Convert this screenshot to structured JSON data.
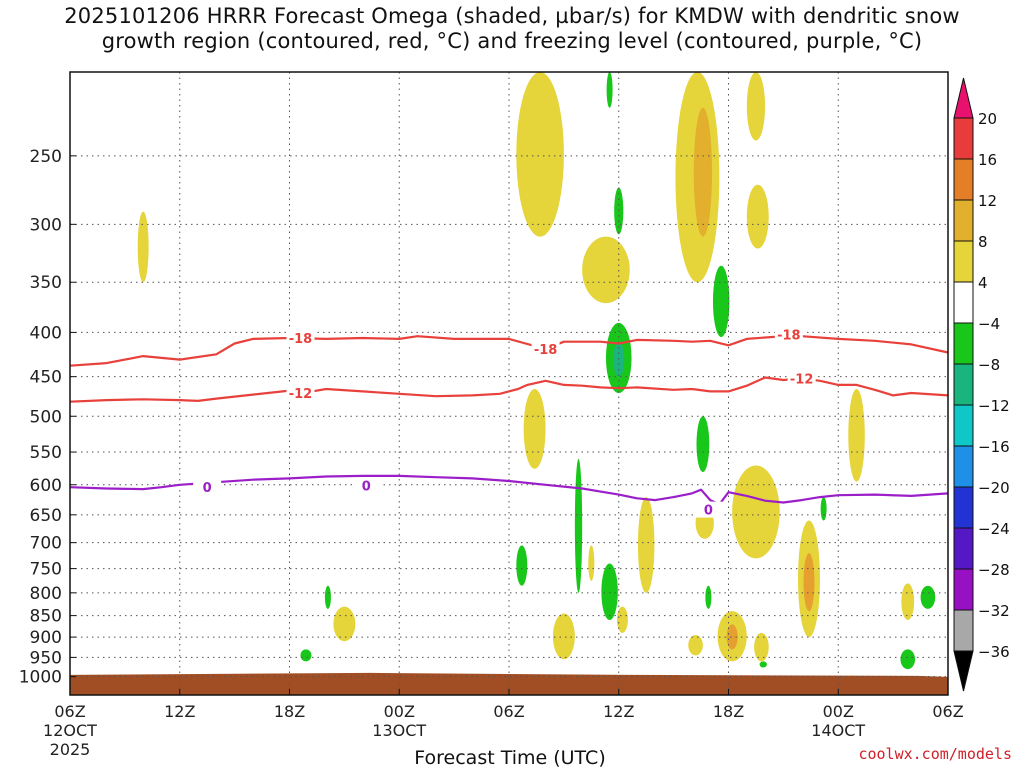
{
  "title": {
    "line1": "2025101206 HRRR Forecast Omega (shaded, µbar/s) for KMDW with dendritic snow",
    "line2": "growth region (contoured, red, °C) and freezing level (contoured, purple, °C)"
  },
  "credit": "coolwx.com/models",
  "chart_data": {
    "type": "heatmap",
    "xlabel": "Forecast Time (UTC)",
    "xlim": [
      0,
      48
    ],
    "x_unit": "hours from 2025-10-12 06Z",
    "x_ticks": [
      {
        "hour": 0,
        "label": "06Z",
        "sub1": "12OCT",
        "sub2": "2025"
      },
      {
        "hour": 6,
        "label": "12Z",
        "sub1": "",
        "sub2": ""
      },
      {
        "hour": 12,
        "label": "18Z",
        "sub1": "",
        "sub2": ""
      },
      {
        "hour": 18,
        "label": "00Z",
        "sub1": "13OCT",
        "sub2": ""
      },
      {
        "hour": 24,
        "label": "06Z",
        "sub1": "",
        "sub2": ""
      },
      {
        "hour": 30,
        "label": "12Z",
        "sub1": "",
        "sub2": ""
      },
      {
        "hour": 36,
        "label": "18Z",
        "sub1": "",
        "sub2": ""
      },
      {
        "hour": 42,
        "label": "00Z",
        "sub1": "14OCT",
        "sub2": ""
      },
      {
        "hour": 48,
        "label": "06Z",
        "sub1": "",
        "sub2": ""
      }
    ],
    "ylabel": "",
    "y_unit": "hPa",
    "y_scale": "log",
    "ylim": [
      1050,
      200
    ],
    "y_ticks": [
      250,
      300,
      350,
      400,
      450,
      500,
      550,
      600,
      650,
      700,
      750,
      800,
      850,
      900,
      950,
      1000
    ],
    "grid": true,
    "colorbar": {
      "levels": [
        20,
        16,
        12,
        8,
        4,
        -4,
        -8,
        -12,
        -16,
        -20,
        -24,
        -28,
        -32,
        -36
      ],
      "colors": [
        "#e8116e",
        "#e83c3c",
        "#e57f27",
        "#e3b02d",
        "#e5d43a",
        "#ffffff",
        "#19c71b",
        "#1ab47f",
        "#10c7c7",
        "#1e90e8",
        "#2233d4",
        "#5418c4",
        "#9710c4",
        "#a8a8a8",
        "#000000"
      ]
    },
    "ground": {
      "color": "#a24e24",
      "top_hpa": 990
    },
    "omega_regions": [
      {
        "t": 25.7,
        "p": 225,
        "dt": 1.3,
        "dp": 85,
        "level": 4
      },
      {
        "t": 29.5,
        "p": 210,
        "dt": 0.15,
        "dp": 10,
        "level": -4
      },
      {
        "t": 30.0,
        "p": 290,
        "dt": 0.25,
        "dp": 18,
        "level": -4
      },
      {
        "t": 29.3,
        "p": 340,
        "dt": 1.3,
        "dp": 30,
        "level": 4
      },
      {
        "t": 34.3,
        "p": 265,
        "dt": 1.2,
        "dp": 85,
        "level": 4
      },
      {
        "t": 34.6,
        "p": 265,
        "dt": 0.5,
        "dp": 45,
        "level": 8
      },
      {
        "t": 37.5,
        "p": 220,
        "dt": 0.5,
        "dp": 20,
        "level": 4
      },
      {
        "t": 37.6,
        "p": 295,
        "dt": 0.6,
        "dp": 25,
        "level": 4
      },
      {
        "t": 35.6,
        "p": 370,
        "dt": 0.45,
        "dp": 35,
        "level": -4
      },
      {
        "t": 30.0,
        "p": 430,
        "dt": 0.7,
        "dp": 40,
        "level": -4
      },
      {
        "t": 30.0,
        "p": 430,
        "dt": 0.3,
        "dp": 20,
        "level": -8
      },
      {
        "t": 4.0,
        "p": 320,
        "dt": 0.3,
        "dp": 30,
        "level": 4
      },
      {
        "t": 25.4,
        "p": 520,
        "dt": 0.6,
        "dp": 55,
        "level": 4
      },
      {
        "t": 34.6,
        "p": 540,
        "dt": 0.35,
        "dp": 40,
        "level": -4
      },
      {
        "t": 43.0,
        "p": 530,
        "dt": 0.45,
        "dp": 65,
        "level": 4
      },
      {
        "t": 37.5,
        "p": 650,
        "dt": 1.3,
        "dp": 80,
        "level": 4
      },
      {
        "t": 34.7,
        "p": 665,
        "dt": 0.5,
        "dp": 28,
        "level": 4
      },
      {
        "t": 31.5,
        "p": 710,
        "dt": 0.45,
        "dp": 90,
        "level": 4
      },
      {
        "t": 27.8,
        "p": 680,
        "dt": 0.2,
        "dp": 120,
        "level": -4
      },
      {
        "t": 28.5,
        "p": 740,
        "dt": 0.15,
        "dp": 35,
        "level": 4
      },
      {
        "t": 24.7,
        "p": 745,
        "dt": 0.3,
        "dp": 40,
        "level": -4
      },
      {
        "t": 29.5,
        "p": 800,
        "dt": 0.45,
        "dp": 60,
        "level": -4
      },
      {
        "t": 30.2,
        "p": 860,
        "dt": 0.3,
        "dp": 30,
        "level": 4
      },
      {
        "t": 27.0,
        "p": 900,
        "dt": 0.6,
        "dp": 55,
        "level": 4
      },
      {
        "t": 40.4,
        "p": 780,
        "dt": 0.6,
        "dp": 120,
        "level": 4
      },
      {
        "t": 40.4,
        "p": 780,
        "dt": 0.3,
        "dp": 60,
        "level": 12
      },
      {
        "t": 41.2,
        "p": 640,
        "dt": 0.15,
        "dp": 20,
        "level": -4
      },
      {
        "t": 36.2,
        "p": 900,
        "dt": 0.8,
        "dp": 60,
        "level": 4
      },
      {
        "t": 36.2,
        "p": 900,
        "dt": 0.3,
        "dp": 30,
        "level": 12
      },
      {
        "t": 34.2,
        "p": 920,
        "dt": 0.4,
        "dp": 25,
        "level": 4
      },
      {
        "t": 37.8,
        "p": 925,
        "dt": 0.4,
        "dp": 35,
        "level": 4
      },
      {
        "t": 34.9,
        "p": 810,
        "dt": 0.15,
        "dp": 25,
        "level": -4
      },
      {
        "t": 37.9,
        "p": 968,
        "dt": 0.2,
        "dp": 8,
        "level": -4
      },
      {
        "t": 14.1,
        "p": 810,
        "dt": 0.12,
        "dp": 25,
        "level": -4
      },
      {
        "t": 15.0,
        "p": 870,
        "dt": 0.6,
        "dp": 40,
        "level": 4
      },
      {
        "t": 12.9,
        "p": 945,
        "dt": 0.3,
        "dp": 15,
        "level": -4
      },
      {
        "t": 45.8,
        "p": 820,
        "dt": 0.35,
        "dp": 40,
        "level": 4
      },
      {
        "t": 46.9,
        "p": 810,
        "dt": 0.4,
        "dp": 25,
        "level": -4
      },
      {
        "t": 45.8,
        "p": 955,
        "dt": 0.4,
        "dp": 25,
        "level": -4
      }
    ],
    "isotherms_red": [
      {
        "label": "-18",
        "label_points": [
          [
            12.6,
            406
          ],
          [
            26.0,
            418
          ],
          [
            39.3,
            402
          ]
        ],
        "points": [
          [
            0,
            437
          ],
          [
            2,
            434
          ],
          [
            4,
            426
          ],
          [
            6,
            430
          ],
          [
            8,
            424
          ],
          [
            9,
            412
          ],
          [
            10,
            407
          ],
          [
            12,
            406
          ],
          [
            14,
            407
          ],
          [
            16,
            406
          ],
          [
            18,
            407
          ],
          [
            19,
            404
          ],
          [
            21,
            407
          ],
          [
            24,
            407
          ],
          [
            26,
            418
          ],
          [
            27,
            410
          ],
          [
            29,
            410
          ],
          [
            30,
            412
          ],
          [
            31,
            408
          ],
          [
            33,
            409
          ],
          [
            34,
            410
          ],
          [
            35,
            409
          ],
          [
            36,
            414
          ],
          [
            37,
            407
          ],
          [
            39,
            404
          ],
          [
            40,
            404
          ],
          [
            42,
            407
          ],
          [
            44,
            409
          ],
          [
            46,
            413
          ],
          [
            48,
            422
          ]
        ]
      },
      {
        "label": "-12",
        "label_points": [
          [
            12.6,
            470
          ],
          [
            40.0,
            452
          ]
        ],
        "points": [
          [
            0,
            481
          ],
          [
            2,
            479
          ],
          [
            4,
            478
          ],
          [
            6,
            479
          ],
          [
            7,
            480
          ],
          [
            8,
            477
          ],
          [
            10,
            472
          ],
          [
            12,
            467
          ],
          [
            13,
            469
          ],
          [
            14,
            465
          ],
          [
            16,
            468
          ],
          [
            18,
            471
          ],
          [
            20,
            474
          ],
          [
            22,
            473
          ],
          [
            23.5,
            471
          ],
          [
            24.5,
            465
          ],
          [
            25,
            460
          ],
          [
            26,
            455
          ],
          [
            27,
            460
          ],
          [
            28,
            461
          ],
          [
            29,
            463
          ],
          [
            30,
            464
          ],
          [
            31,
            463
          ],
          [
            33,
            466
          ],
          [
            34,
            465
          ],
          [
            35,
            468
          ],
          [
            36,
            468
          ],
          [
            37,
            461
          ],
          [
            38,
            451
          ],
          [
            39,
            454
          ],
          [
            40,
            452
          ],
          [
            41,
            455
          ],
          [
            42,
            460
          ],
          [
            43,
            460
          ],
          [
            44,
            466
          ],
          [
            45,
            473
          ],
          [
            46,
            470
          ],
          [
            48,
            473
          ]
        ]
      }
    ],
    "freezing_level": {
      "label": "0",
      "label_points": [
        [
          7.5,
          604
        ],
        [
          16.2,
          601
        ],
        [
          34.9,
          641
        ]
      ],
      "points": [
        [
          0,
          604
        ],
        [
          2,
          606
        ],
        [
          4,
          607
        ],
        [
          5,
          604
        ],
        [
          6,
          600
        ],
        [
          8,
          596
        ],
        [
          10,
          592
        ],
        [
          12,
          590
        ],
        [
          14,
          587
        ],
        [
          16,
          586
        ],
        [
          18,
          586
        ],
        [
          20,
          588
        ],
        [
          22,
          590
        ],
        [
          24,
          594
        ],
        [
          26,
          600
        ],
        [
          28,
          606
        ],
        [
          29,
          611
        ],
        [
          30,
          616
        ],
        [
          31,
          622
        ],
        [
          32,
          625
        ],
        [
          33,
          620
        ],
        [
          34,
          614
        ],
        [
          34.5,
          608
        ],
        [
          35,
          625
        ],
        [
          35.5,
          632
        ],
        [
          36,
          612
        ],
        [
          37,
          618
        ],
        [
          38,
          626
        ],
        [
          39,
          629
        ],
        [
          40,
          625
        ],
        [
          41,
          620
        ],
        [
          42,
          617
        ],
        [
          44,
          616
        ],
        [
          46,
          618
        ],
        [
          48,
          614
        ]
      ]
    }
  }
}
